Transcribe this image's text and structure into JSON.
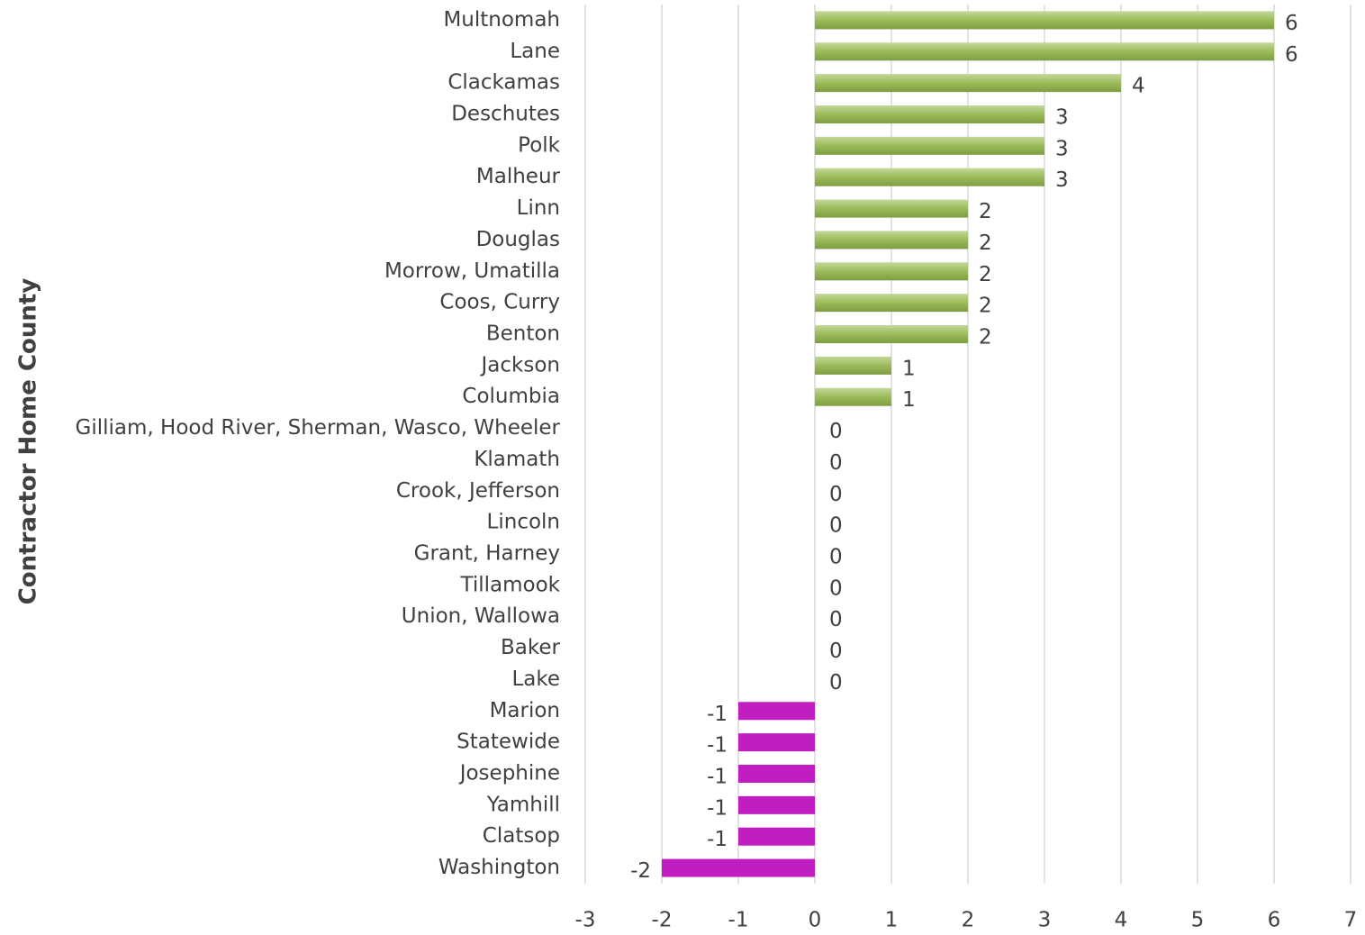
{
  "chart_data": {
    "type": "bar",
    "orientation": "horizontal",
    "y_axis_label": "Contractor Home County",
    "categories": [
      "Multnomah",
      "Lane",
      "Clackamas",
      "Deschutes",
      "Polk",
      "Malheur",
      "Linn",
      "Douglas",
      "Morrow, Umatilla",
      "Coos, Curry",
      "Benton",
      "Jackson",
      "Columbia",
      "Gilliam, Hood River, Sherman, Wasco, Wheeler",
      "Klamath",
      "Crook, Jefferson",
      "Lincoln",
      "Grant, Harney",
      "Tillamook",
      "Union, Wallowa",
      "Baker",
      "Lake",
      "Marion",
      "Statewide",
      "Josephine",
      "Yamhill",
      "Clatsop",
      "Washington"
    ],
    "values": [
      6,
      6,
      4,
      3,
      3,
      3,
      2,
      2,
      2,
      2,
      2,
      1,
      1,
      0,
      0,
      0,
      0,
      0,
      0,
      0,
      0,
      0,
      -1,
      -1,
      -1,
      -1,
      -1,
      -2
    ],
    "color_positive": "#9bbb59",
    "color_negative": "#c01ec0",
    "xlim": [
      -3,
      7
    ],
    "xticks": [
      -3,
      -2,
      -1,
      0,
      1,
      2,
      3,
      4,
      5,
      6,
      7
    ],
    "grid": true
  }
}
